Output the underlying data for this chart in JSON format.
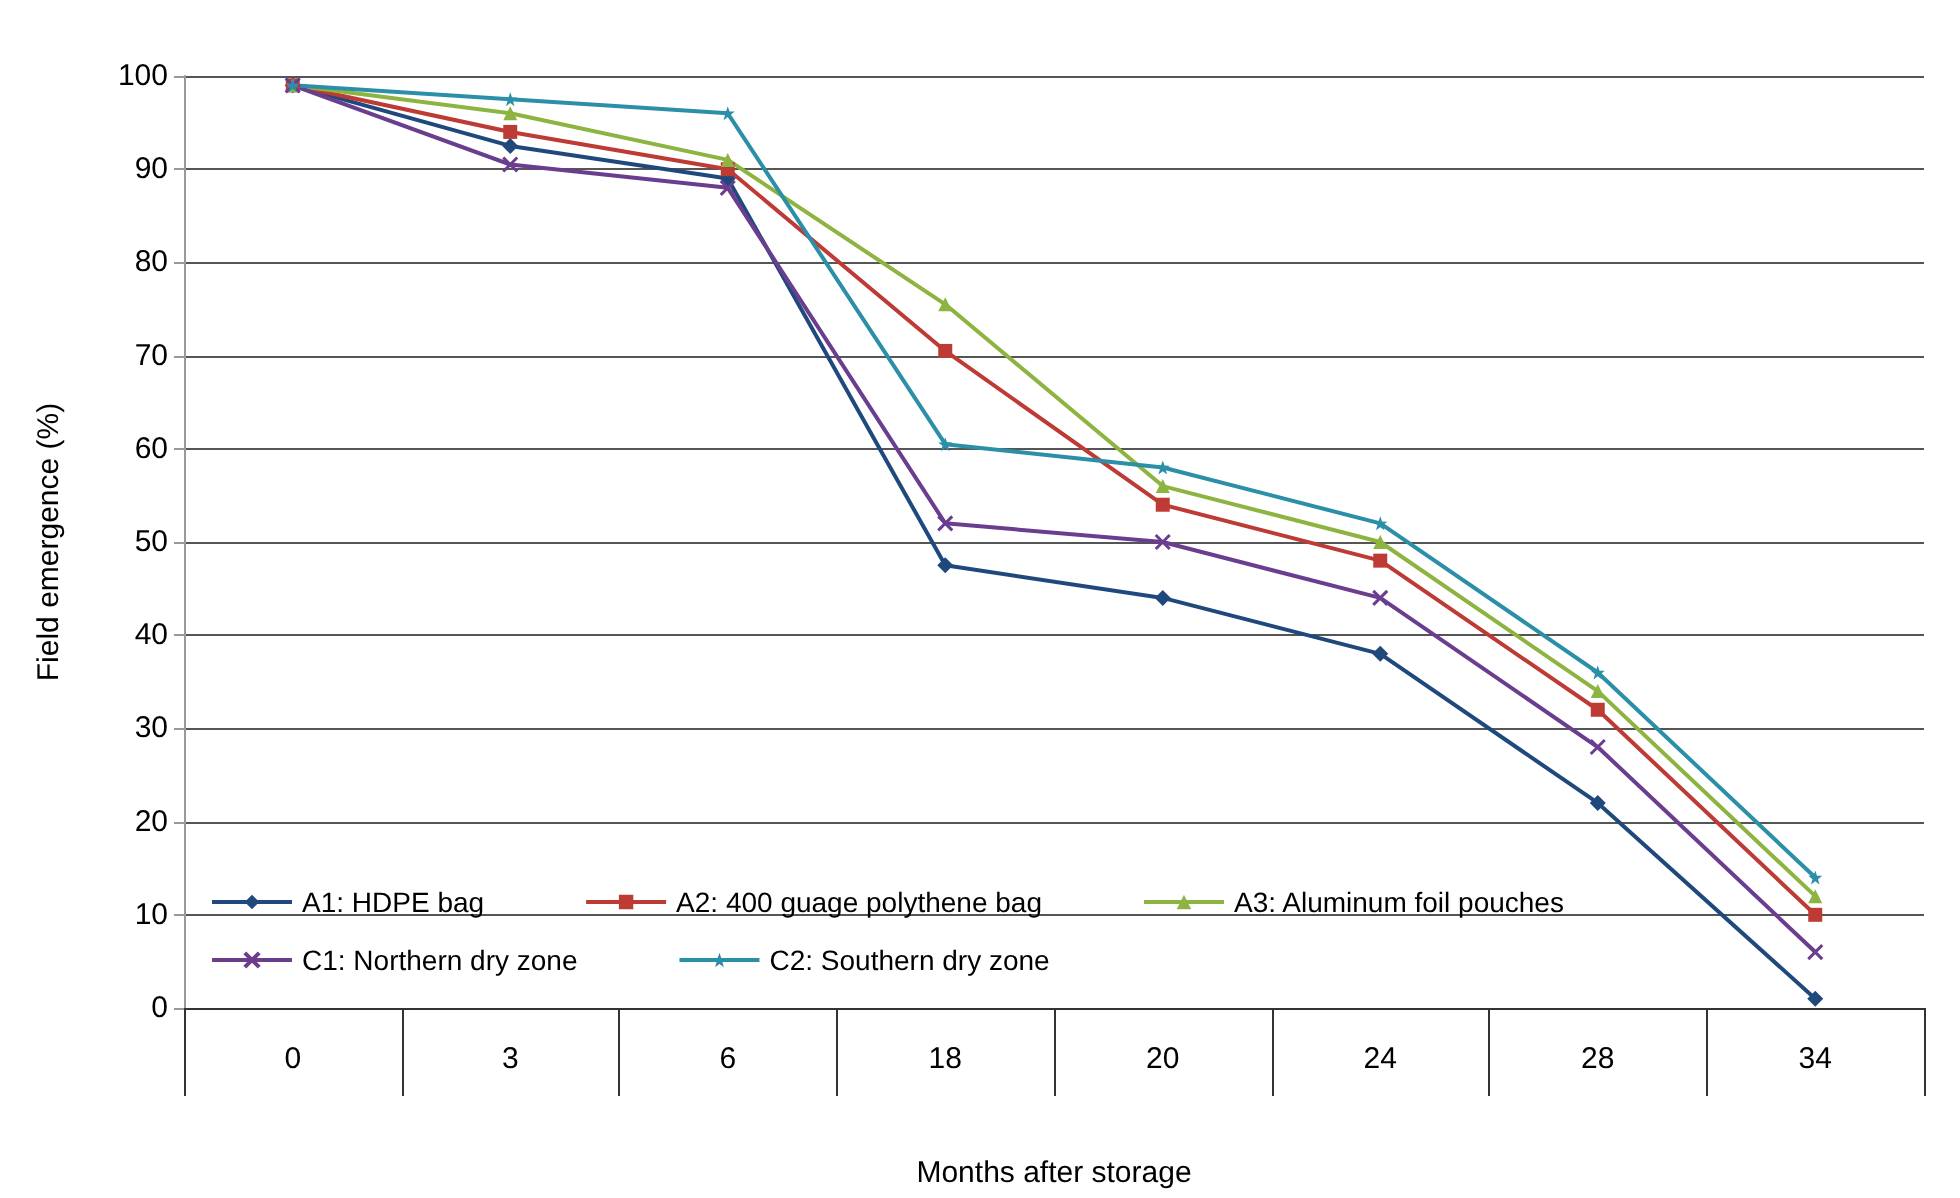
{
  "chart_data": {
    "type": "line",
    "xlabel": "Months after storage",
    "ylabel": "Field emergence (%)",
    "categories": [
      "0",
      "3",
      "6",
      "18",
      "20",
      "24",
      "28",
      "34"
    ],
    "series": [
      {
        "name": "A1: HDPE bag",
        "color": "#1f497d",
        "marker": "diamond",
        "values": [
          99,
          92.5,
          89,
          47.5,
          44,
          38,
          22,
          1
        ]
      },
      {
        "name": "A2: 400 guage polythene bag",
        "color": "#be3a34",
        "marker": "square",
        "values": [
          99,
          94,
          90,
          70.5,
          54,
          48,
          32,
          10
        ]
      },
      {
        "name": "A3: Aluminum foil pouches",
        "color": "#8db440",
        "marker": "triangle",
        "values": [
          99,
          96,
          91,
          75.5,
          56,
          50,
          34,
          12
        ]
      },
      {
        "name": "C1: Northern dry zone",
        "color": "#6a3d8f",
        "marker": "cross",
        "values": [
          99,
          90.5,
          88,
          52,
          50,
          44,
          28,
          6
        ]
      },
      {
        "name": "C2: Southern dry zone",
        "color": "#2b8fa8",
        "marker": "star",
        "values": [
          99,
          97.5,
          96,
          60.5,
          58,
          52,
          36,
          14
        ]
      }
    ],
    "ylim": [
      0,
      100
    ],
    "yticks": [
      0,
      10,
      20,
      30,
      40,
      50,
      60,
      70,
      80,
      90,
      100
    ],
    "grid": "y",
    "legend": "bottom left",
    "line_style": "solid"
  }
}
